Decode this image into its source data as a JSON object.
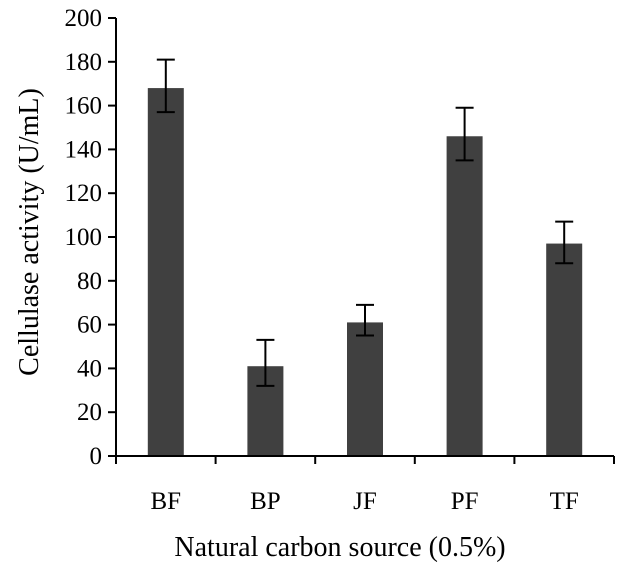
{
  "chart_data": {
    "type": "bar",
    "title": "",
    "xlabel": "Natural carbon source (0.5%)",
    "ylabel": "Cellulase activity (U/mL)",
    "categories": [
      "BF",
      "BP",
      "JF",
      "PF",
      "TF"
    ],
    "values": [
      168,
      41,
      61,
      146,
      97
    ],
    "error_upper": [
      181,
      53,
      69,
      159,
      107
    ],
    "error_lower": [
      157,
      32,
      55,
      135,
      88
    ],
    "ylim": [
      0,
      200
    ],
    "yticks": [
      0,
      20,
      40,
      60,
      80,
      100,
      120,
      140,
      160,
      180,
      200
    ],
    "grid": false,
    "legend": "none",
    "bar_color": "#404040",
    "axis_color": "#000000"
  }
}
